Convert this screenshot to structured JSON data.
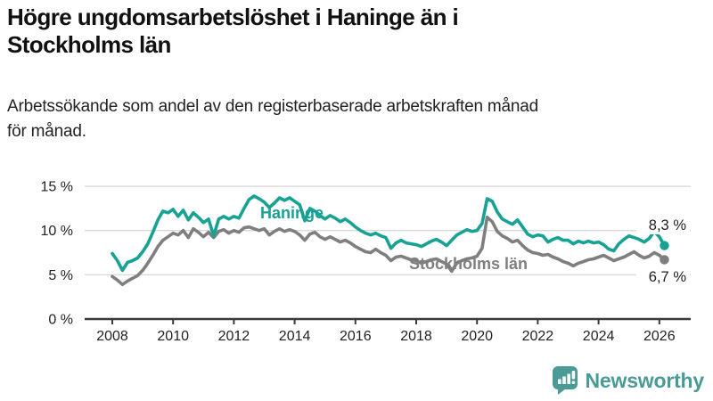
{
  "header": {
    "title": "Högre ungdomsarbetslöshet i Haninge än i Stockholms län",
    "title_lines": [
      "Högre ungdomsarbetslöshet i Haninge än i",
      "Stockholms län"
    ],
    "subtitle": "Arbetssökande som andel av den registerbaserade arbetskraften månad för månad.",
    "subtitle_lines": [
      "Arbetssökande som andel av den registerbaserade arbetskraften månad",
      "för månad."
    ]
  },
  "branding": {
    "logo_text": "Newsworthy",
    "logo_icon": "bar-chart-speech-bubble-icon",
    "logo_color": "#4a9a95"
  },
  "chart_data": {
    "type": "line",
    "title": "Högre ungdomsarbetslöshet i Haninge än i Stockholms län",
    "unit": "%",
    "grid": "horizontal",
    "x_axis": {
      "tick_labels": [
        "2008",
        "2010",
        "2012",
        "2014",
        "2016",
        "2018",
        "2020",
        "2022",
        "2024",
        "2026"
      ],
      "tick_values": [
        2008,
        2010,
        2012,
        2014,
        2016,
        2018,
        2020,
        2022,
        2024,
        2026
      ],
      "range": [
        2007.8,
        2027.0
      ]
    },
    "y_axis": {
      "tick_labels": [
        "0 %",
        "5 %",
        "10 %",
        "15 %"
      ],
      "tick_values": [
        0,
        5,
        10,
        15
      ],
      "range": [
        0,
        15.8
      ]
    },
    "x_start": 2008.0,
    "x_step": 0.166667,
    "series": [
      {
        "id": "haninge",
        "name": "Haninge",
        "color": "#17a293",
        "end_value": 8.3,
        "end_label": "8,3 %",
        "values": [
          7.4,
          6.6,
          5.5,
          6.4,
          6.6,
          6.9,
          7.6,
          8.5,
          9.8,
          11.2,
          12.2,
          12.0,
          12.4,
          11.6,
          12.3,
          11.2,
          12.0,
          11.5,
          10.9,
          11.3,
          9.4,
          11.3,
          11.6,
          11.3,
          11.6,
          11.4,
          12.5,
          13.5,
          13.9,
          13.6,
          13.2,
          12.6,
          13.1,
          13.7,
          13.4,
          13.7,
          13.3,
          12.9,
          11.1,
          12.5,
          12.2,
          11.7,
          11.3,
          11.7,
          11.4,
          11.0,
          11.3,
          10.9,
          10.4,
          10.0,
          9.7,
          9.5,
          9.7,
          9.4,
          9.2,
          8.0,
          8.6,
          8.9,
          8.6,
          8.5,
          8.4,
          8.2,
          8.5,
          8.8,
          9.0,
          8.7,
          8.3,
          8.9,
          9.5,
          9.8,
          10.1,
          9.9,
          10.0,
          10.8,
          13.6,
          13.3,
          12.1,
          11.3,
          11.0,
          10.7,
          11.2,
          10.4,
          9.6,
          9.3,
          9.5,
          9.4,
          8.7,
          9.0,
          9.2,
          8.9,
          8.9,
          8.5,
          8.8,
          8.6,
          8.8,
          8.6,
          8.7,
          8.4,
          7.9,
          7.7,
          8.5,
          9.0,
          9.4,
          9.2,
          9.0,
          8.7,
          9.1,
          9.9,
          9.3,
          8.3
        ]
      },
      {
        "id": "stockholms-lan",
        "name": "Stockholms län",
        "color": "#7f7f7f",
        "end_value": 6.7,
        "end_label": "6,7 %",
        "values": [
          4.8,
          4.4,
          3.9,
          4.3,
          4.6,
          4.9,
          5.5,
          6.3,
          7.2,
          8.2,
          8.9,
          9.3,
          9.7,
          9.5,
          10.0,
          9.2,
          10.2,
          9.8,
          9.3,
          9.8,
          9.2,
          9.9,
          10.1,
          9.7,
          10.0,
          9.8,
          10.3,
          10.4,
          10.2,
          10.0,
          10.2,
          9.5,
          9.9,
          10.2,
          9.9,
          10.1,
          9.9,
          9.5,
          8.9,
          9.6,
          9.8,
          9.3,
          9.0,
          9.3,
          9.0,
          8.7,
          8.9,
          8.6,
          8.2,
          7.9,
          7.6,
          7.5,
          7.9,
          7.5,
          7.2,
          6.6,
          7.0,
          7.1,
          6.9,
          6.7,
          6.6,
          6.3,
          6.5,
          6.7,
          6.8,
          6.5,
          6.2,
          5.4,
          6.3,
          6.6,
          6.8,
          6.9,
          7.1,
          8.0,
          11.5,
          11.0,
          9.9,
          9.4,
          9.1,
          8.7,
          8.9,
          8.3,
          7.8,
          7.5,
          7.4,
          7.2,
          7.3,
          7.0,
          6.8,
          6.5,
          6.3,
          6.0,
          6.3,
          6.5,
          6.7,
          6.8,
          7.0,
          7.2,
          6.9,
          6.6,
          6.8,
          7.0,
          7.3,
          7.6,
          7.2,
          6.9,
          7.1,
          7.5,
          7.2,
          6.7
        ]
      }
    ],
    "colors": {
      "grid": "#d8d8d8",
      "axis": "#3a3a3a",
      "tick_text": "#222222",
      "value_label_text": "#222222"
    }
  }
}
